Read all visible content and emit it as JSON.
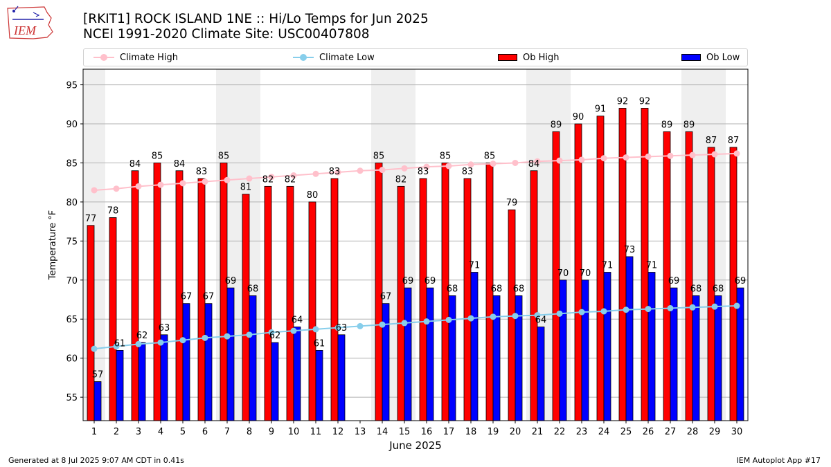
{
  "header": {
    "title_line1": "[RKIT1] ROCK ISLAND 1NE :: Hi/Lo Temps for Jun 2025",
    "title_line2": "NCEI 1991-2020 Climate Site: USC00407808",
    "logo_text": "IEM"
  },
  "footer": {
    "generated": "Generated at 8 Jul 2025 9:07 AM CDT in 0.41s",
    "app": "IEM Autoplot App #17"
  },
  "colors": {
    "ob_high": "#ff0000",
    "ob_low": "#0000ff",
    "climate_high": "#ffc0cb",
    "climate_low": "#87ceeb",
    "weekend_band": "#efefef",
    "grid": "#b0b0b0"
  },
  "chart_data": {
    "type": "bar",
    "xlabel": "June 2025",
    "ylabel": "Temperature °F",
    "ylim": [
      52,
      97
    ],
    "yticks": [
      55,
      60,
      65,
      70,
      75,
      80,
      85,
      90,
      95
    ],
    "grid": "horizontal",
    "legend_placement": "top",
    "weekend_days": [
      1,
      7,
      8,
      14,
      15,
      21,
      22,
      28,
      29
    ],
    "categories": [
      "1",
      "2",
      "3",
      "4",
      "5",
      "6",
      "7",
      "8",
      "9",
      "10",
      "11",
      "12",
      "13",
      "14",
      "15",
      "16",
      "17",
      "18",
      "19",
      "20",
      "21",
      "22",
      "23",
      "24",
      "25",
      "26",
      "27",
      "28",
      "29",
      "30"
    ],
    "series": [
      {
        "name": "Ob High",
        "kind": "bar",
        "values": [
          77,
          78,
          84,
          85,
          84,
          83,
          85,
          81,
          82,
          82,
          80,
          83,
          null,
          85,
          82,
          83,
          85,
          83,
          85,
          79,
          84,
          89,
          90,
          91,
          92,
          92,
          89,
          89,
          87,
          87
        ]
      },
      {
        "name": "Ob Low",
        "kind": "bar",
        "values": [
          57,
          61,
          62,
          63,
          67,
          67,
          69,
          68,
          62,
          64,
          61,
          63,
          null,
          67,
          69,
          69,
          68,
          71,
          68,
          68,
          64,
          70,
          70,
          71,
          73,
          71,
          69,
          68,
          68,
          69
        ]
      },
      {
        "name": "Climate High",
        "kind": "line",
        "values": [
          81.5,
          81.7,
          82.0,
          82.2,
          82.4,
          82.6,
          82.8,
          83.0,
          83.2,
          83.4,
          83.6,
          83.8,
          84.0,
          84.1,
          84.3,
          84.5,
          84.6,
          84.8,
          84.9,
          85.0,
          85.2,
          85.3,
          85.4,
          85.6,
          85.7,
          85.8,
          85.9,
          86.0,
          86.1,
          86.2
        ]
      },
      {
        "name": "Climate Low",
        "kind": "line",
        "values": [
          61.2,
          61.5,
          61.8,
          62.0,
          62.3,
          62.6,
          62.8,
          63.0,
          63.3,
          63.5,
          63.7,
          63.9,
          64.1,
          64.3,
          64.5,
          64.7,
          64.9,
          65.1,
          65.3,
          65.4,
          65.5,
          65.7,
          65.9,
          66.0,
          66.2,
          66.3,
          66.4,
          66.5,
          66.6,
          66.7
        ]
      }
    ]
  }
}
